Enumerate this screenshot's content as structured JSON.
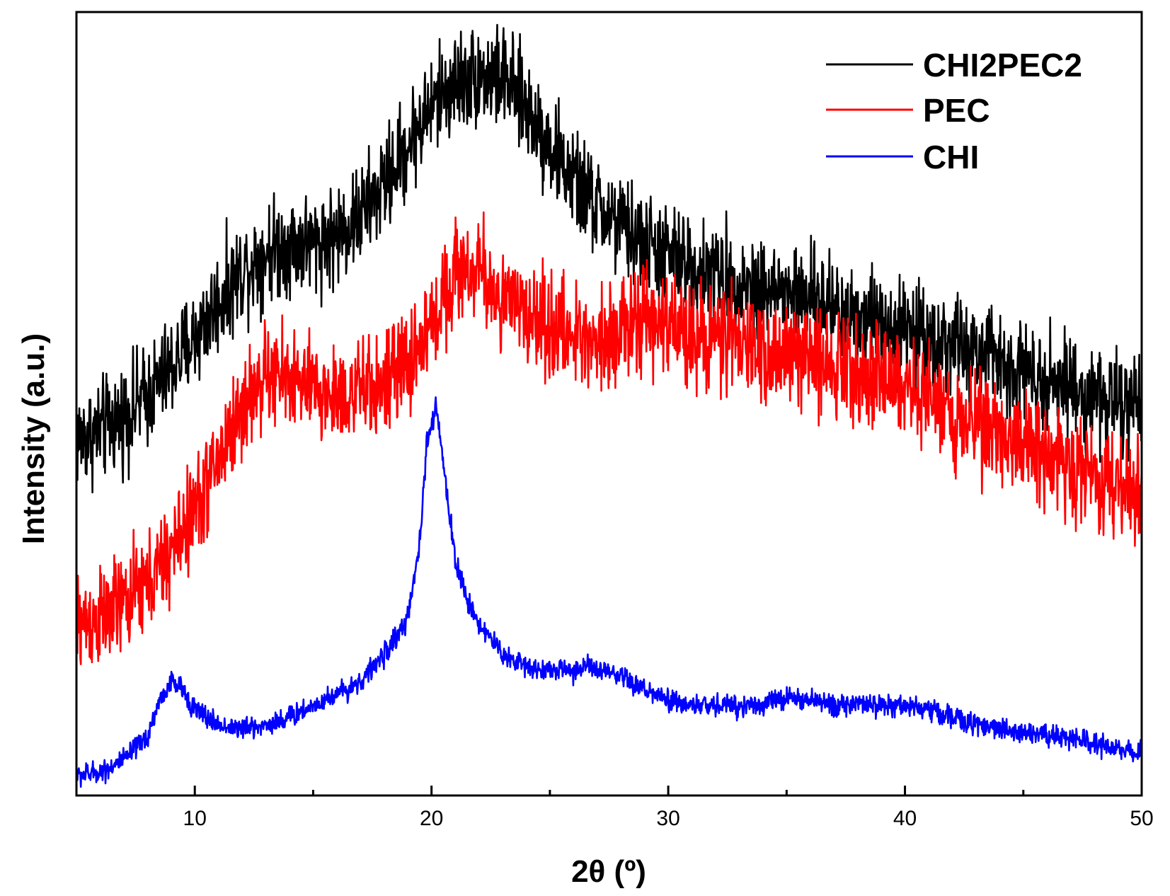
{
  "chart_data": {
    "type": "line",
    "title": "",
    "xlabel": "2θ (º)",
    "ylabel": "Intensity (a.u.)",
    "xlim": [
      5,
      50
    ],
    "ylim": [
      0,
      100
    ],
    "x_ticks": [
      10,
      20,
      30,
      40,
      50
    ],
    "x_minor_ticks": [
      15,
      25,
      35,
      45
    ],
    "x_tick_labels": [
      "10",
      "20",
      "30",
      "40",
      "50"
    ],
    "y_ticks_shown": false,
    "grid": false,
    "legend_position": "top-right",
    "series": [
      {
        "name": "CHI2PEC2",
        "color": "#000000",
        "noise": 3.2,
        "x": [
          5,
          6,
          7,
          8,
          9,
          10,
          11,
          12,
          13,
          14,
          15,
          16,
          17,
          18,
          19,
          20,
          21,
          22,
          23,
          24,
          25,
          26,
          27,
          28,
          29,
          30,
          31,
          32,
          33,
          34,
          35,
          36,
          37,
          38,
          39,
          40,
          41,
          42,
          43,
          44,
          45,
          46,
          47,
          48,
          49,
          50
        ],
        "y": [
          45.5,
          46.5,
          48.5,
          51.0,
          54.5,
          58.5,
          63.0,
          67.0,
          69.5,
          70.5,
          70.5,
          71.5,
          74.0,
          78.0,
          83.0,
          88.0,
          91.0,
          92.0,
          91.5,
          88.0,
          83.0,
          78.5,
          75.0,
          72.5,
          70.5,
          69.0,
          67.5,
          66.5,
          65.5,
          64.8,
          64.0,
          63.3,
          62.5,
          61.5,
          60.5,
          59.5,
          58.5,
          57.5,
          56.5,
          55.5,
          54.5,
          53.5,
          52.0,
          51.0,
          50.0,
          48.5
        ]
      },
      {
        "name": "PEC",
        "color": "#ff0000",
        "noise": 3.2,
        "x": [
          5,
          6,
          7,
          8,
          9,
          10,
          11,
          12,
          13,
          14,
          15,
          16,
          17,
          18,
          19,
          20,
          21,
          22,
          23,
          24,
          25,
          26,
          27,
          28,
          29,
          30,
          31,
          32,
          33,
          34,
          35,
          36,
          37,
          38,
          39,
          40,
          41,
          42,
          43,
          44,
          45,
          46,
          47,
          48,
          49,
          50
        ],
        "y": [
          22.0,
          22.5,
          24.5,
          27.0,
          31.0,
          36.5,
          43.0,
          49.5,
          53.5,
          53.5,
          51.5,
          51.0,
          51.5,
          52.5,
          55.0,
          60.0,
          67.0,
          67.0,
          63.0,
          61.5,
          60.0,
          58.5,
          58.5,
          59.5,
          60.5,
          60.0,
          59.0,
          58.5,
          57.5,
          56.5,
          56.0,
          56.0,
          55.5,
          54.5,
          53.5,
          52.0,
          50.5,
          49.0,
          47.5,
          46.5,
          45.0,
          43.5,
          42.0,
          40.5,
          39.5,
          38.5
        ]
      },
      {
        "name": "CHI",
        "color": "#0000ff",
        "noise": 0.7,
        "x": [
          5,
          6,
          7,
          8,
          8.5,
          9,
          9.5,
          10,
          11,
          12,
          13,
          14,
          15,
          16,
          17,
          18,
          19,
          19.5,
          19.8,
          20.2,
          20.6,
          21,
          21.5,
          22,
          23,
          24,
          25,
          26,
          26.5,
          27,
          28,
          29,
          30,
          31,
          32,
          33,
          34,
          35,
          36,
          37,
          38,
          39,
          40,
          41,
          42,
          43,
          44,
          45,
          46,
          47,
          48,
          49,
          50
        ],
        "y": [
          2.5,
          3.0,
          4.5,
          7.5,
          12.0,
          14.5,
          13.5,
          11.0,
          9.0,
          8.5,
          9.0,
          10.0,
          11.5,
          13.0,
          14.5,
          18.0,
          22.5,
          32.0,
          45.0,
          49.5,
          40.0,
          30.0,
          25.0,
          22.0,
          18.0,
          16.5,
          16.0,
          16.0,
          16.5,
          16.0,
          15.0,
          13.5,
          12.0,
          11.5,
          11.5,
          11.5,
          11.7,
          12.5,
          12.0,
          11.7,
          11.5,
          11.5,
          11.5,
          11.0,
          10.0,
          9.0,
          8.5,
          8.2,
          7.8,
          7.2,
          6.5,
          6.0,
          5.5
        ]
      }
    ]
  }
}
